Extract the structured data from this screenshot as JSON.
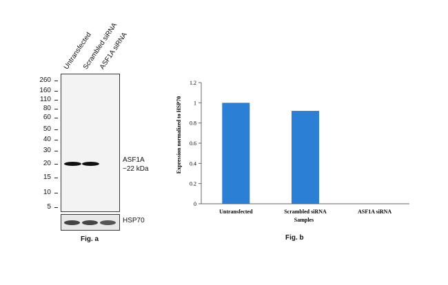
{
  "figure_a": {
    "caption": "Fig. a",
    "lanes": [
      "Untransfected",
      "Scrambled siRNA",
      "ASF1A siRNA"
    ],
    "mw_markers": [
      "260",
      "160",
      "110",
      "80",
      "60",
      "50",
      "40",
      "30",
      "20",
      "15",
      "10",
      "5"
    ],
    "band_label": "ASF1A",
    "band_size": "~22 kDa",
    "loading_control": "HSP70"
  },
  "figure_b": {
    "caption": "Fig. b"
  },
  "chart_data": {
    "type": "bar",
    "categories": [
      "Untransfected",
      "Scrambled siRNA",
      "ASF1A siRNA"
    ],
    "values": [
      1.0,
      0.92,
      0.0
    ],
    "xlabel": "Samples",
    "ylabel": "Expression normalized to HSP70",
    "ylim": [
      0,
      1.2
    ],
    "yticks": [
      "0",
      "0.2",
      "0.4",
      "0.6",
      "0.8",
      "1",
      "1.2"
    ],
    "bar_color": "#2b7fd4",
    "grid": false,
    "legend": "none"
  }
}
